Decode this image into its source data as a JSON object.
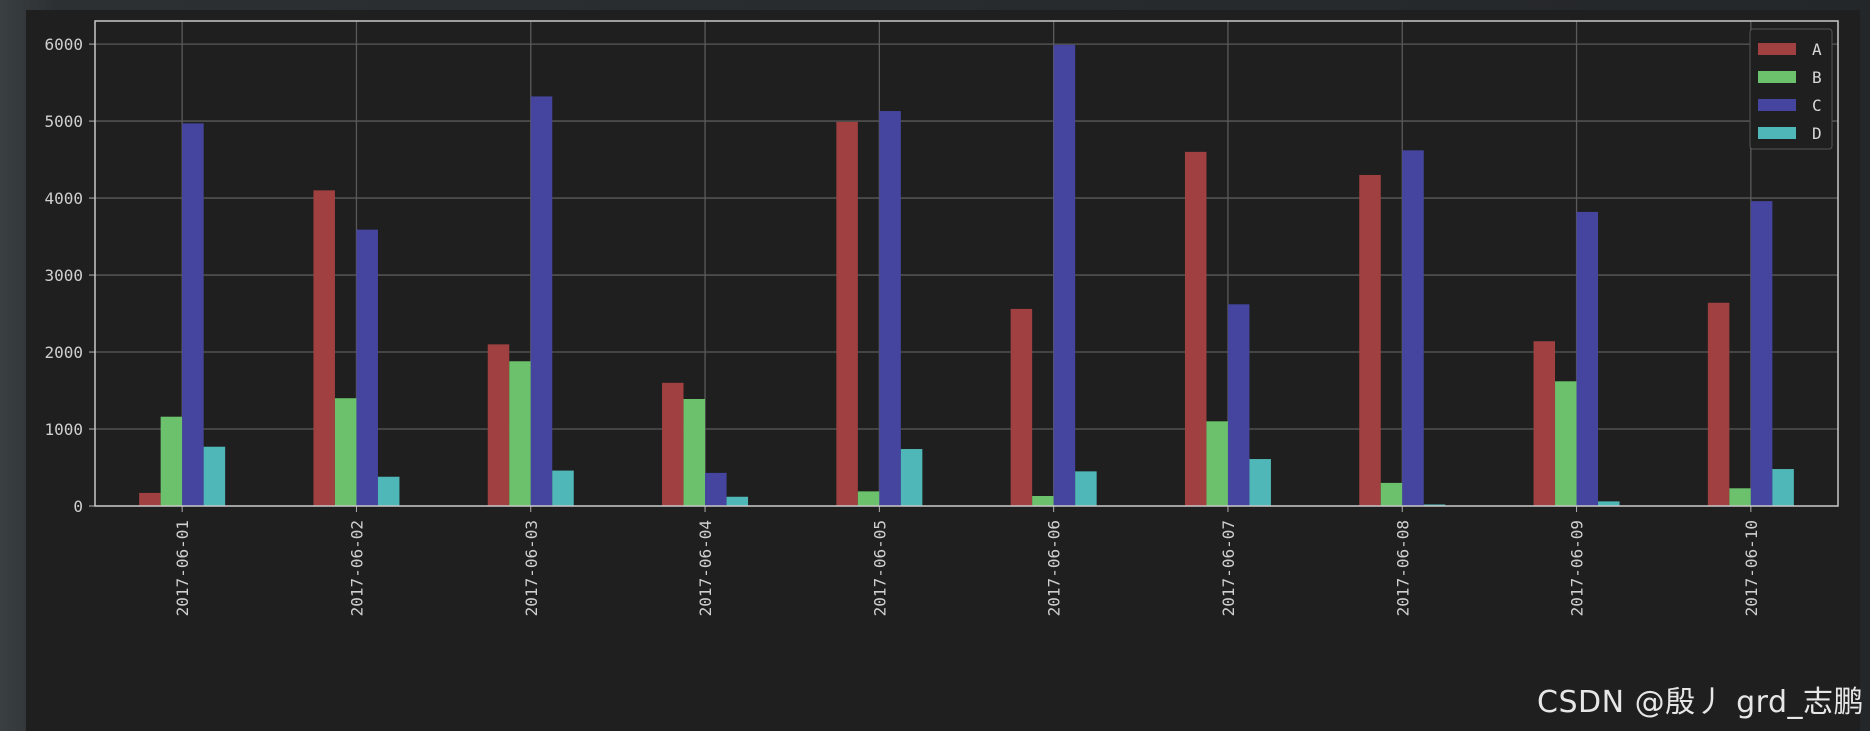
{
  "chart_data": {
    "type": "bar",
    "categories": [
      "2017-06-01",
      "2017-06-02",
      "2017-06-03",
      "2017-06-04",
      "2017-06-05",
      "2017-06-06",
      "2017-06-07",
      "2017-06-08",
      "2017-06-09",
      "2017-06-10"
    ],
    "series": [
      {
        "name": "A",
        "color": "#a04040",
        "values": [
          170,
          4100,
          2100,
          1600,
          4990,
          2560,
          4600,
          4300,
          2140,
          2640
        ]
      },
      {
        "name": "B",
        "color": "#6cc26c",
        "values": [
          1160,
          1400,
          1880,
          1390,
          190,
          130,
          1100,
          300,
          1620,
          230
        ]
      },
      {
        "name": "C",
        "color": "#4545a0",
        "values": [
          4970,
          3590,
          5320,
          430,
          5130,
          5990,
          2620,
          4620,
          3820,
          3960
        ]
      },
      {
        "name": "D",
        "color": "#4fb7b7",
        "values": [
          770,
          380,
          460,
          120,
          740,
          450,
          610,
          20,
          60,
          480
        ]
      }
    ],
    "ylim": [
      0,
      6300
    ],
    "yticks": [
      0,
      1000,
      2000,
      3000,
      4000,
      5000,
      6000
    ],
    "grid": true,
    "legend_position": "top-right",
    "title": "",
    "xlabel": "",
    "ylabel": ""
  },
  "watermark": "CSDN @殷丿 grd_志鹏"
}
